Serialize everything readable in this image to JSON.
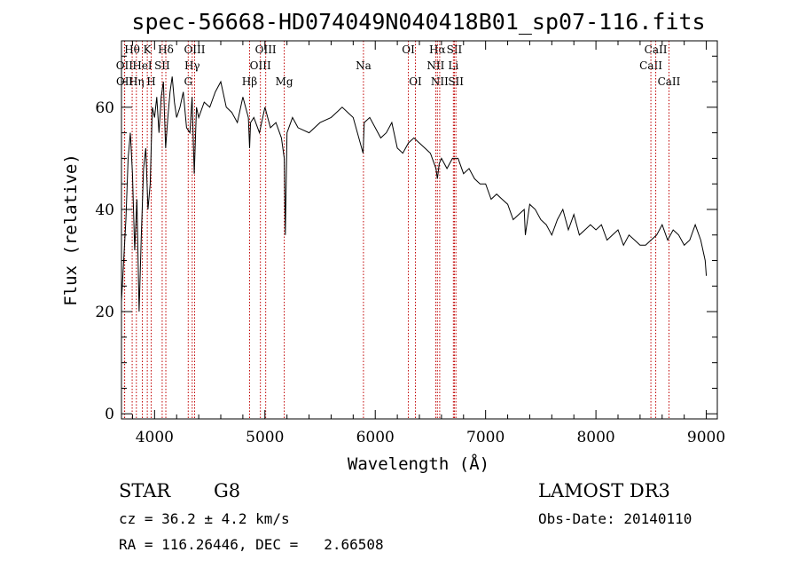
{
  "chart_data": {
    "type": "line",
    "title": "spec-56668-HD074049N040418B01_sp07-116.fits",
    "xlabel": "Wavelength (Å)",
    "ylabel": "Flux (relative)",
    "xlim": [
      3700,
      9100
    ],
    "ylim": [
      -1,
      73
    ],
    "xticks": [
      4000,
      5000,
      6000,
      7000,
      8000,
      9000
    ],
    "yticks": [
      0,
      20,
      40,
      60
    ],
    "grid": false,
    "line_color": "#000000",
    "marker_color": "#c00000",
    "series": [
      {
        "x": [
          3700,
          3720,
          3740,
          3760,
          3780,
          3800,
          3820,
          3840,
          3860,
          3880,
          3900,
          3920,
          3940,
          3960,
          3980,
          4000,
          4020,
          4040,
          4060,
          4080,
          4100,
          4120,
          4140,
          4160,
          4180,
          4200,
          4230,
          4260,
          4290,
          4320,
          4340,
          4360,
          4380,
          4400,
          4450,
          4500,
          4550,
          4600,
          4650,
          4700,
          4750,
          4800,
          4850,
          4861,
          4870,
          4900,
          4950,
          5000,
          5050,
          5100,
          5150,
          5175,
          5185,
          5200,
          5250,
          5300,
          5400,
          5500,
          5600,
          5700,
          5800,
          5890,
          5900,
          5950,
          6000,
          6050,
          6100,
          6150,
          6200,
          6250,
          6300,
          6350,
          6400,
          6450,
          6500,
          6550,
          6563,
          6580,
          6600,
          6650,
          6700,
          6750,
          6800,
          6850,
          6900,
          6950,
          7000,
          7050,
          7100,
          7150,
          7200,
          7250,
          7300,
          7350,
          7360,
          7400,
          7450,
          7500,
          7550,
          7600,
          7650,
          7700,
          7750,
          7800,
          7850,
          7900,
          7950,
          8000,
          8050,
          8100,
          8150,
          8200,
          8250,
          8300,
          8350,
          8400,
          8450,
          8500,
          8550,
          8600,
          8650,
          8700,
          8750,
          8800,
          8850,
          8900,
          8950,
          8990,
          9000
        ],
        "y": [
          22,
          30,
          38,
          50,
          55,
          47,
          32,
          42,
          20,
          35,
          48,
          52,
          40,
          45,
          60,
          58,
          62,
          55,
          62,
          65,
          52,
          58,
          63,
          66,
          61,
          58,
          60,
          63,
          56,
          55,
          62,
          47,
          60,
          58,
          61,
          60,
          63,
          65,
          60,
          59,
          57,
          62,
          58,
          52,
          57,
          58,
          55,
          60,
          56,
          57,
          54,
          50,
          35,
          55,
          58,
          56,
          55,
          57,
          58,
          60,
          58,
          51,
          57,
          58,
          56,
          54,
          55,
          57,
          52,
          51,
          53,
          54,
          53,
          52,
          51,
          48,
          46,
          49,
          50,
          48,
          50,
          50,
          47,
          48,
          46,
          45,
          45,
          42,
          43,
          42,
          41,
          38,
          39,
          40,
          35,
          41,
          40,
          38,
          37,
          35,
          38,
          40,
          36,
          39,
          35,
          36,
          37,
          36,
          37,
          34,
          35,
          36,
          33,
          35,
          34,
          33,
          33,
          34,
          35,
          37,
          34,
          36,
          35,
          33,
          34,
          37,
          34,
          30,
          27
        ]
      }
    ],
    "lines": [
      {
        "label": "Hθ",
        "w": 3797,
        "row": 0
      },
      {
        "label": "OII",
        "w": 3727,
        "row": 1
      },
      {
        "label": "OII",
        "w": 3729,
        "row": 2
      },
      {
        "label": "HeI",
        "w": 3889,
        "row": 1
      },
      {
        "label": "Hη",
        "w": 3835,
        "row": 2
      },
      {
        "label": "K",
        "w": 3934,
        "row": 0
      },
      {
        "label": "H",
        "w": 3969,
        "row": 2
      },
      {
        "label": "SII",
        "w": 4069,
        "row": 1
      },
      {
        "label": "Hδ",
        "w": 4102,
        "row": 0
      },
      {
        "label": "OIII",
        "w": 4363,
        "row": 0
      },
      {
        "label": "Hγ",
        "w": 4341,
        "row": 1
      },
      {
        "label": "G",
        "w": 4305,
        "row": 2
      },
      {
        "label": "OIII",
        "w": 4959,
        "row": 1
      },
      {
        "label": "OIII",
        "w": 5007,
        "row": 0
      },
      {
        "label": "Hβ",
        "w": 4861,
        "row": 2
      },
      {
        "label": "Mg",
        "w": 5175,
        "row": 2
      },
      {
        "label": "Na",
        "w": 5893,
        "row": 1
      },
      {
        "label": "OI",
        "w": 6300,
        "row": 0
      },
      {
        "label": "OI",
        "w": 6364,
        "row": 2
      },
      {
        "label": "Hα",
        "w": 6563,
        "row": 0
      },
      {
        "label": "NII",
        "w": 6548,
        "row": 1
      },
      {
        "label": "NII",
        "w": 6584,
        "row": 2
      },
      {
        "label": "SII",
        "w": 6717,
        "row": 0
      },
      {
        "label": "Li",
        "w": 6708,
        "row": 1
      },
      {
        "label": "SII",
        "w": 6731,
        "row": 2
      },
      {
        "label": "CaII",
        "w": 8498,
        "row": 1
      },
      {
        "label": "CaII",
        "w": 8542,
        "row": 0
      },
      {
        "label": "CaII",
        "w": 8662,
        "row": 2
      }
    ]
  },
  "info": {
    "object_class": "STAR",
    "subclass": "G8",
    "survey": "LAMOST DR3",
    "redshift_text": "cz = 36.2 ± 4.2 km/s",
    "obs_date": "Obs-Date: 20140110",
    "coords_text": "RA = 116.26446, DEC =   2.66508"
  }
}
